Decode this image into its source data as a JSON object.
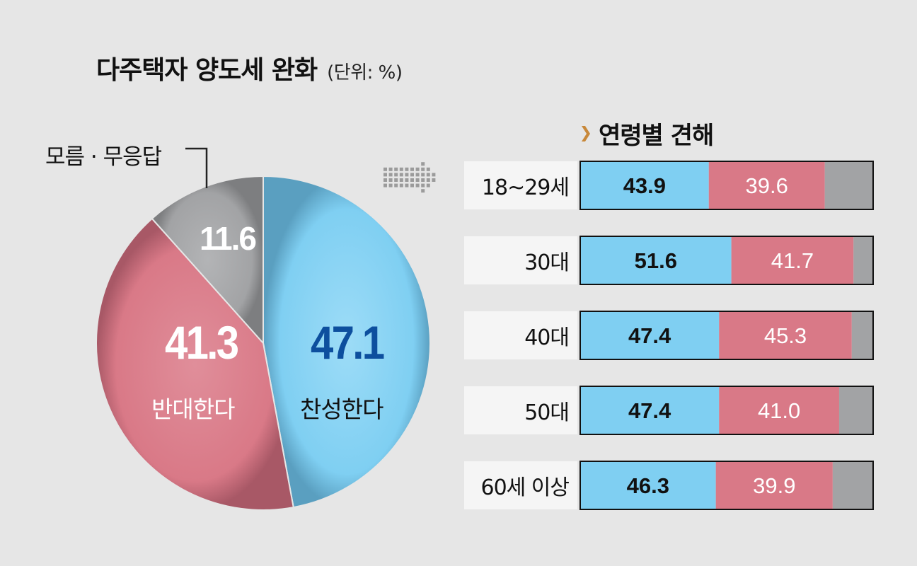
{
  "title": "다주택자 양도세 완화",
  "unit": "(단위: %)",
  "subtitle": "연령별 견해",
  "callout_label": "모름 · 무응답",
  "colors": {
    "favor": "#7fcff2",
    "oppose": "#d97987",
    "unknown": "#a2a3a5",
    "favor_text": "#0d4f9e",
    "oppose_text": "#ffffff",
    "accent": "#c8883a"
  },
  "chart_data": [
    {
      "type": "pie",
      "title": "다주택자 양도세 완화",
      "unit": "(단위: %)",
      "slices": [
        {
          "label": "찬성한다",
          "value": 47.1,
          "value_text": "47.1"
        },
        {
          "label": "반대한다",
          "value": 41.3,
          "value_text": "41.3"
        },
        {
          "label": "모름 · 무응답",
          "value": 11.6,
          "value_text": "11.6"
        }
      ]
    },
    {
      "type": "bar",
      "stacked": true,
      "orientation": "horizontal",
      "title": "연령별 견해",
      "categories": [
        "18~29세",
        "30대",
        "40대",
        "50대",
        "60세 이상"
      ],
      "series": [
        {
          "name": "찬성한다",
          "values": [
            43.9,
            51.6,
            47.4,
            47.4,
            46.3
          ],
          "labels": [
            "43.9",
            "51.6",
            "47.4",
            "47.4",
            "46.3"
          ]
        },
        {
          "name": "반대한다",
          "values": [
            39.6,
            41.7,
            45.3,
            41.0,
            39.9
          ],
          "labels": [
            "39.6",
            "41.7",
            "45.3",
            "41.0",
            "39.9"
          ]
        },
        {
          "name": "모름 · 무응답",
          "values": [
            16.5,
            6.7,
            7.3,
            11.6,
            13.8
          ]
        }
      ],
      "xlim": [
        0,
        100
      ]
    }
  ]
}
